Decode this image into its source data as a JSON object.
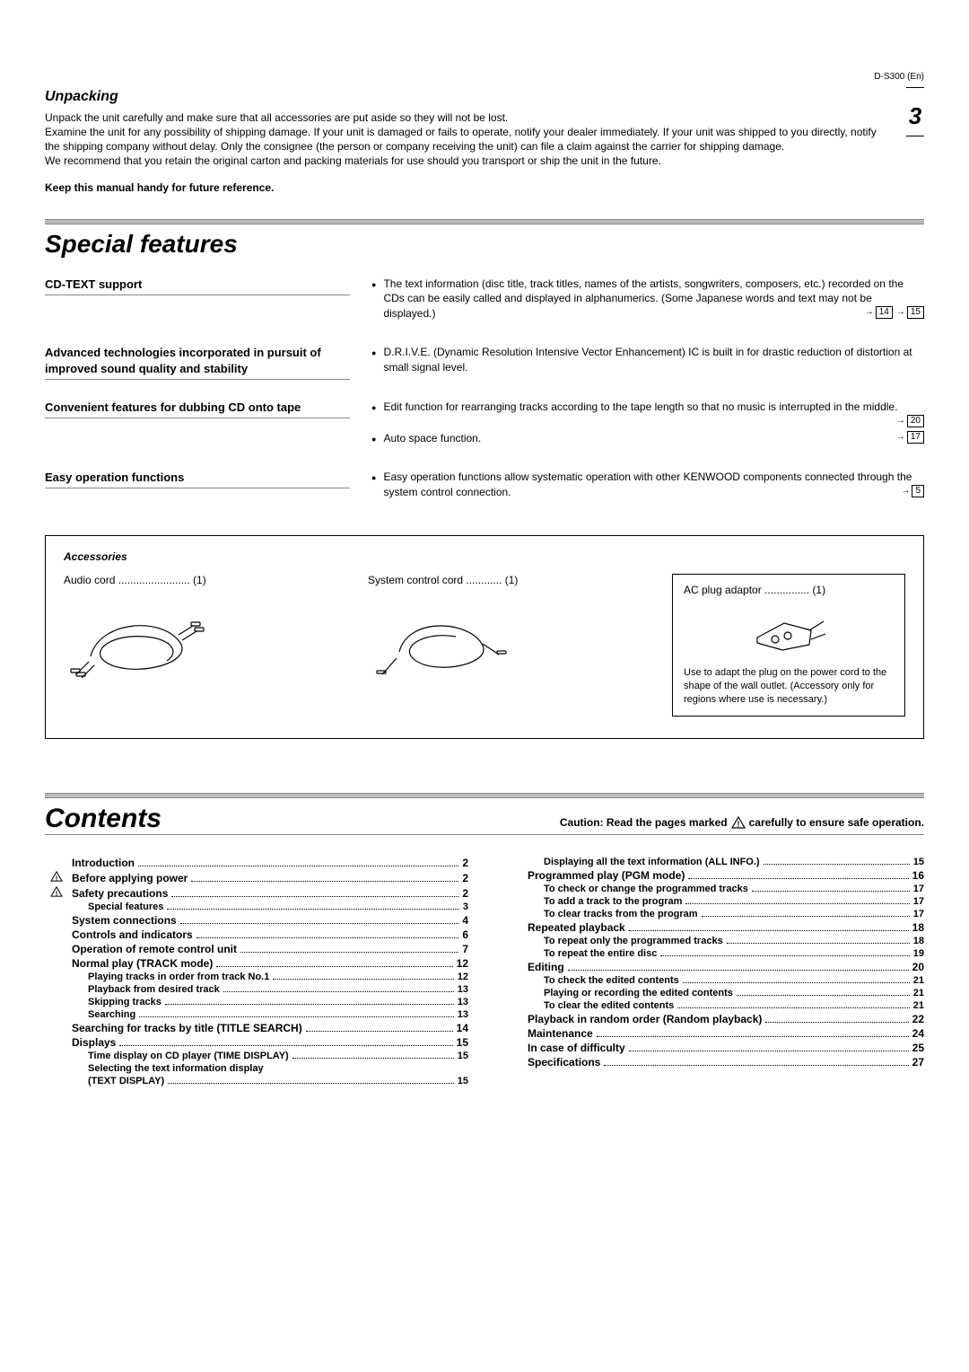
{
  "header_model": "D-S300 (En)",
  "page_number": "3",
  "unpacking": {
    "title": "Unpacking",
    "p1": "Unpack the unit carefully and make sure that all accessories are put aside so they will not be lost.",
    "p2": "Examine the unit for any possibility of shipping damage. If your unit is damaged or fails to operate, notify your dealer immediately. If your unit was shipped to you directly, notify the shipping company without delay. Only the consignee (the person or company receiving the unit) can file a claim against the carrier for shipping damage.",
    "p3": "We recommend that you retain the original carton and packing materials for use should you transport or ship the unit in the future.",
    "keep": "Keep this manual handy for future reference."
  },
  "special_features": {
    "title": "Special features",
    "rows": [
      {
        "left": "CD-TEXT support",
        "items": [
          {
            "text": "The text information (disc title, track titles, names of the artists, songwriters, composers, etc.) recorded on the CDs can be easily called and displayed in alphanumerics. (Some Japanese words and text may not be displayed.)",
            "refs": [
              "14",
              "15"
            ]
          }
        ]
      },
      {
        "left": "Advanced technologies incorporated in pursuit of improved sound quality and stability",
        "items": [
          {
            "text": "D.R.I.V.E. (Dynamic Resolution Intensive Vector Enhancement) IC is built in for drastic reduction of distortion at small signal level.",
            "refs": []
          }
        ]
      },
      {
        "left": "Convenient features for dubbing CD onto tape",
        "items": [
          {
            "text": "Edit function for rearranging tracks according to the tape length so that no music is interrupted in the middle.",
            "refs": [
              "20"
            ]
          },
          {
            "text": "Auto space function.",
            "refs": [
              "17"
            ]
          }
        ]
      },
      {
        "left": "Easy operation functions",
        "items": [
          {
            "text": "Easy operation functions allow systematic operation with other KENWOOD components connected through the system control connection.",
            "refs": [
              "5"
            ]
          }
        ]
      }
    ]
  },
  "accessories": {
    "title": "Accessories",
    "audio": {
      "label": "Audio cord ........................ (1)"
    },
    "system": {
      "label": "System control cord ............ (1)"
    },
    "ac": {
      "label": "AC plug adaptor ...............   (1)",
      "note": "Use to adapt the plug on the power cord to the shape of the wall outlet. (Accessory only for regions where use is necessary.)"
    }
  },
  "contents": {
    "title": "Contents",
    "caution_pre": "Caution: Read the pages marked",
    "caution_post": "carefully to ensure safe operation.",
    "left": [
      {
        "lvl": 1,
        "label": "Introduction",
        "page": "2",
        "warn": false
      },
      {
        "lvl": 1,
        "label": "Before applying power",
        "page": "2",
        "warn": true
      },
      {
        "lvl": 1,
        "label": "Safety precautions",
        "page": "2",
        "warn": true
      },
      {
        "lvl": 2,
        "label": "Special features",
        "page": "3"
      },
      {
        "lvl": 1,
        "label": "System connections",
        "page": "4"
      },
      {
        "lvl": 1,
        "label": "Controls and indicators",
        "page": "6"
      },
      {
        "lvl": 1,
        "label": "Operation of remote control unit",
        "page": "7"
      },
      {
        "lvl": 1,
        "label": "Normal play (TRACK mode)",
        "page": "12"
      },
      {
        "lvl": 2,
        "label": "Playing tracks in order from track No.1",
        "page": "12"
      },
      {
        "lvl": 2,
        "label": "Playback from desired track",
        "page": "13"
      },
      {
        "lvl": 2,
        "label": "Skipping tracks",
        "page": "13"
      },
      {
        "lvl": 2,
        "label": "Searching",
        "page": "13"
      },
      {
        "lvl": 1,
        "label": "Searching for tracks by title (TITLE SEARCH)",
        "page": "14"
      },
      {
        "lvl": 1,
        "label": "Displays",
        "page": "15"
      },
      {
        "lvl": 2,
        "label": "Time display on CD player (TIME DISPLAY)",
        "page": "15"
      },
      {
        "lvl": "2m",
        "line1": "Selecting the text information display",
        "line2": "(TEXT DISPLAY)",
        "page": "15"
      }
    ],
    "right": [
      {
        "lvl": 2,
        "label": "Displaying all the text information (ALL INFO.)",
        "page": "15"
      },
      {
        "lvl": 1,
        "label": "Programmed play (PGM mode)",
        "page": "16"
      },
      {
        "lvl": 2,
        "label": "To check or change the programmed tracks",
        "page": "17"
      },
      {
        "lvl": 2,
        "label": "To add a track to the program",
        "page": "17"
      },
      {
        "lvl": 2,
        "label": "To clear tracks from the program",
        "page": "17"
      },
      {
        "lvl": 1,
        "label": "Repeated playback",
        "page": "18"
      },
      {
        "lvl": 2,
        "label": "To repeat only the programmed tracks",
        "page": "18"
      },
      {
        "lvl": 2,
        "label": "To repeat the entire disc",
        "page": "19"
      },
      {
        "lvl": 1,
        "label": "Editing",
        "page": "20"
      },
      {
        "lvl": 2,
        "label": "To check the edited contents",
        "page": "21"
      },
      {
        "lvl": 2,
        "label": "Playing or recording the edited contents",
        "page": "21"
      },
      {
        "lvl": 2,
        "label": "To clear the edited contents",
        "page": "21"
      },
      {
        "lvl": 1,
        "label": "Playback in random order (Random playback)",
        "page": "22"
      },
      {
        "lvl": 1,
        "label": "Maintenance",
        "page": "24"
      },
      {
        "lvl": 1,
        "label": "In case of difficulty",
        "page": "25"
      },
      {
        "lvl": 1,
        "label": "Specifications",
        "page": "27"
      }
    ]
  }
}
